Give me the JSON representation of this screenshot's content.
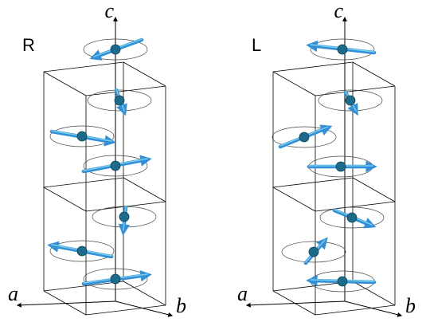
{
  "panels": [
    {
      "label": "R",
      "axes": {
        "c": "c",
        "a": "a",
        "b": "b"
      }
    },
    {
      "label": "L",
      "axes": {
        "c": "c",
        "a": "a",
        "b": "b"
      }
    }
  ]
}
